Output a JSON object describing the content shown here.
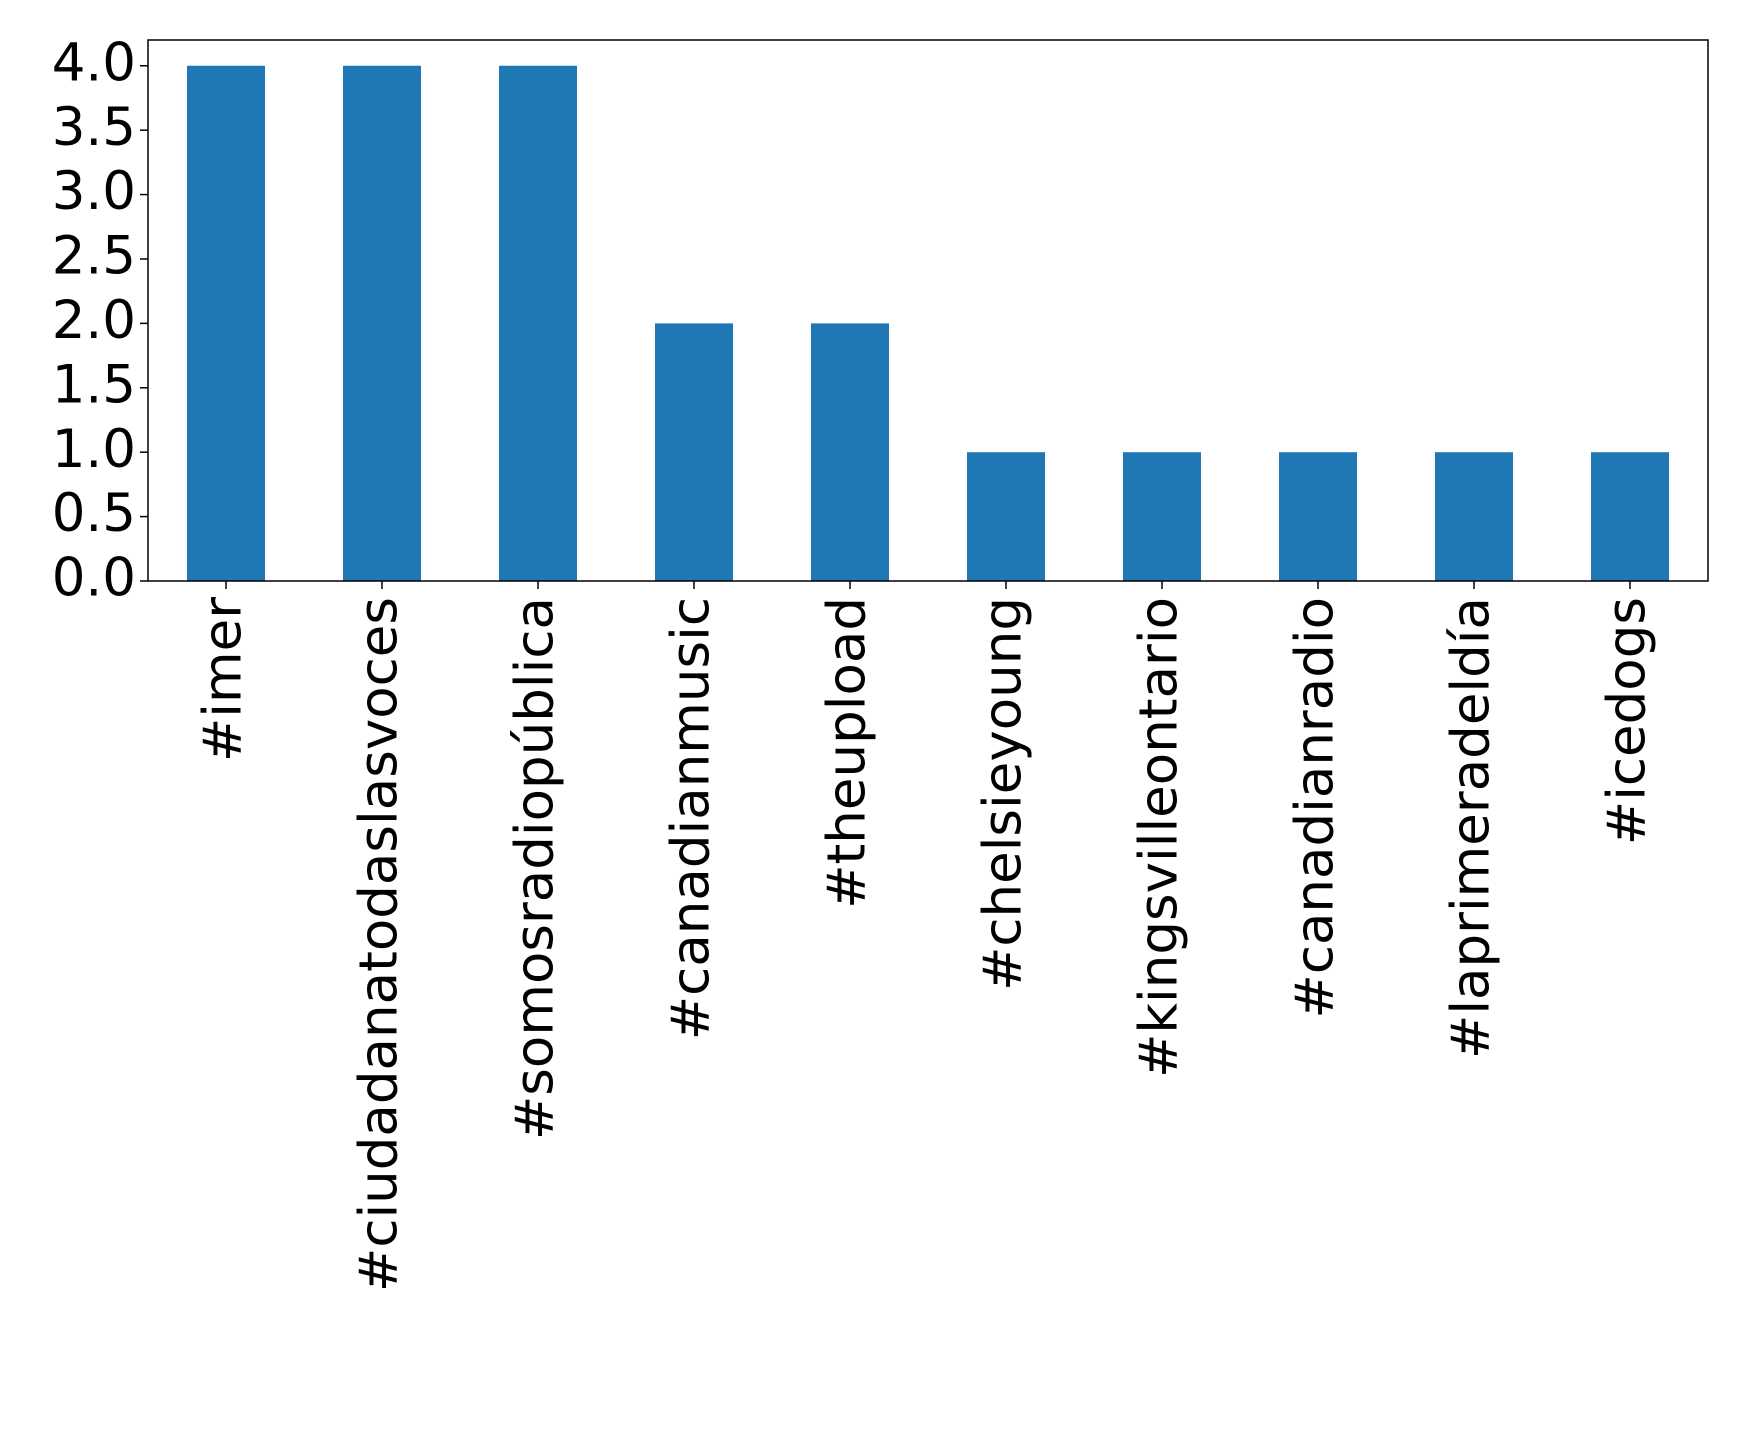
{
  "chart_data": {
    "type": "bar",
    "categories": [
      "#imer",
      "#ciudadanatodaslasvoces",
      "#somosradiopública",
      "#canadianmusic",
      "#theupload",
      "#chelsieyoung",
      "#kingsvilleontario",
      "#canadianradio",
      "#laprimeradeldía",
      "#icedogs"
    ],
    "values": [
      4,
      4,
      4,
      2,
      2,
      1,
      1,
      1,
      1,
      1
    ],
    "color": "#1f77b4",
    "ylim": [
      0,
      4.2
    ],
    "yticks": [
      {
        "value": 0,
        "label": "0.0"
      },
      {
        "value": 0.5,
        "label": "0.5"
      },
      {
        "value": 1,
        "label": "1.0"
      },
      {
        "value": 1.5,
        "label": "1.5"
      },
      {
        "value": 2,
        "label": "2.0"
      },
      {
        "value": 2.5,
        "label": "2.5"
      },
      {
        "value": 3,
        "label": "3.0"
      },
      {
        "value": 3.5,
        "label": "3.5"
      },
      {
        "value": 4,
        "label": "4.0"
      }
    ],
    "grid": false
  }
}
